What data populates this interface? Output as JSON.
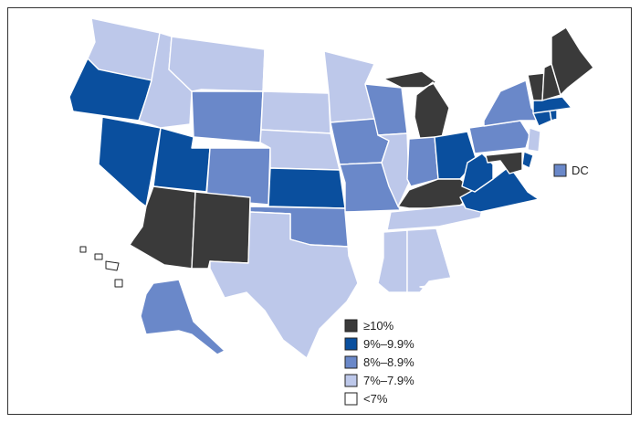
{
  "colors": {
    "ge10": "#3a3a3a",
    "9_9.9": "#0a4f9e",
    "8_8.9": "#6a88c9",
    "7_7.9": "#bdc8ea",
    "lt7": "#ffffff"
  },
  "legend": [
    {
      "key": "ge10",
      "label": "≥10%"
    },
    {
      "key": "9_9.9",
      "label": "9%–9.9%"
    },
    {
      "key": "8_8.9",
      "label": "8%–8.9%"
    },
    {
      "key": "7_7.9",
      "label": "7%–7.9%"
    },
    {
      "key": "lt7",
      "label": "<7%"
    }
  ],
  "dc": {
    "label": "DC",
    "class": "8_8.9"
  },
  "states": {
    "WA": "7_7.9",
    "OR": "9_9.9",
    "CA": "lt7",
    "NV": "9_9.9",
    "ID": "7_7.9",
    "MT": "7_7.9",
    "WY": "8_8.9",
    "UT": "9_9.9",
    "CO": "8_8.9",
    "AZ": "ge10",
    "NM": "ge10",
    "ND": "lt7",
    "SD": "7_7.9",
    "NE": "7_7.9",
    "KS": "9_9.9",
    "OK": "8_8.9",
    "TX": "7_7.9",
    "MN": "7_7.9",
    "IA": "8_8.9",
    "MO": "8_8.9",
    "AR": "lt7",
    "LA": "lt7",
    "WI": "8_8.9",
    "IL": "7_7.9",
    "MI": "ge10",
    "IN": "8_8.9",
    "OH": "9_9.9",
    "KY": "ge10",
    "TN": "7_7.9",
    "MS": "7_7.9",
    "AL": "7_7.9",
    "GA": "lt7",
    "FL": "lt7",
    "SC": "lt7",
    "NC": "lt7",
    "VA": "9_9.9",
    "WV": "9_9.9",
    "PA": "8_8.9",
    "NY": "8_8.9",
    "NJ": "7_7.9",
    "DE": "9_9.9",
    "MD": "ge10",
    "CT": "9_9.9",
    "RI": "9_9.9",
    "MA": "9_9.9",
    "VT": "ge10",
    "NH": "ge10",
    "ME": "ge10",
    "AK": "8_8.9",
    "HI": "lt7"
  }
}
